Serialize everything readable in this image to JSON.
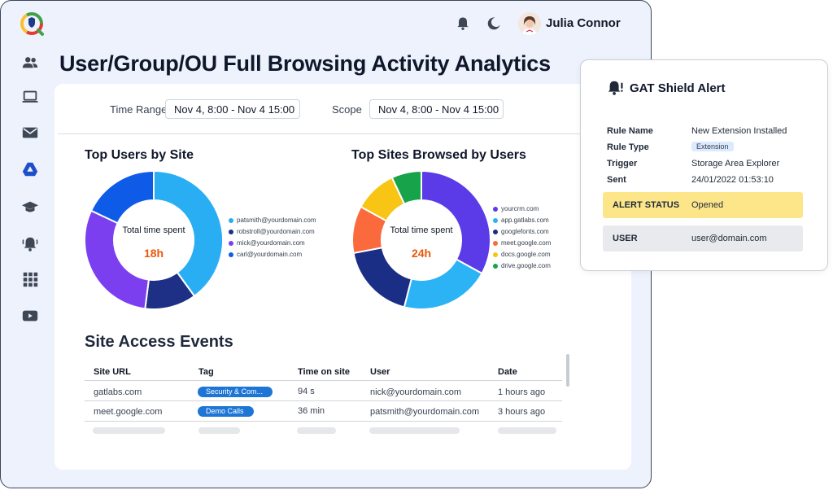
{
  "header": {
    "user_name": "Julia Connor"
  },
  "page": {
    "title": "User/Group/OU Full Browsing Activity Analytics"
  },
  "filters": {
    "time_range_label": "Time Range",
    "time_range_value": "Nov 4, 8:00 - Nov 4 15:00",
    "scope_label": "Scope",
    "scope_value": "Nov 4, 8:00 - Nov 4 15:00"
  },
  "chart_data": [
    {
      "type": "pie",
      "title": "Top Users by Site",
      "center_label": "Total time spent",
      "center_value": "18h",
      "categories": [
        "patsmith@yourdomain.com",
        "robstroll@yourdomain.com",
        "mick@yourdomain.com",
        "carl@yourdomain.com"
      ],
      "values": [
        40,
        12,
        30,
        18
      ],
      "colors": [
        "#29aef4",
        "#1e2f86",
        "#7b3ff0",
        "#0e5be8"
      ],
      "legend": "right"
    },
    {
      "type": "pie",
      "title": "Top Sites Browsed by Users",
      "center_label": "Total time spent",
      "center_value": "24h",
      "categories": [
        "yourcrm.com",
        "app.gatlabs.com",
        "googlefonts.com",
        "meet.google.com",
        "docs.google.com",
        "drive.google.com"
      ],
      "values": [
        33,
        21,
        18,
        11,
        10,
        7
      ],
      "colors": [
        "#5b3be8",
        "#2bb3f5",
        "#1b2e86",
        "#fb6a3d",
        "#f8c515",
        "#16a34a"
      ],
      "legend": "right"
    }
  ],
  "events": {
    "title": "Site Access Events",
    "columns": [
      "Site URL",
      "Tag",
      "Time on site",
      "User",
      "Date"
    ],
    "rows": [
      {
        "url": "gatlabs.com",
        "tag": "Security & Com...",
        "time": "94 s",
        "user": "nick@yourdomain.com",
        "date": "1 hours ago"
      },
      {
        "url": "meet.google.com",
        "tag": "Demo Calls",
        "time": "36 min",
        "user": "patsmith@yourdomain.com",
        "date": "3 hours ago"
      }
    ]
  },
  "alert": {
    "title": "GAT Shield Alert",
    "rule_name_key": "Rule Name",
    "rule_name_val": "New Extension Installed",
    "rule_type_key": "Rule Type",
    "rule_type_val": "Extension",
    "trigger_key": "Trigger",
    "trigger_val": "Storage Area Explorer",
    "sent_key": "Sent",
    "sent_val": "24/01/2022 01:53:10",
    "status_key": "ALERT STATUS",
    "status_val": "Opened",
    "user_key": "USER",
    "user_val": "user@domain.com",
    "status_color": "#fde68a",
    "user_color": "#e8eaed"
  }
}
